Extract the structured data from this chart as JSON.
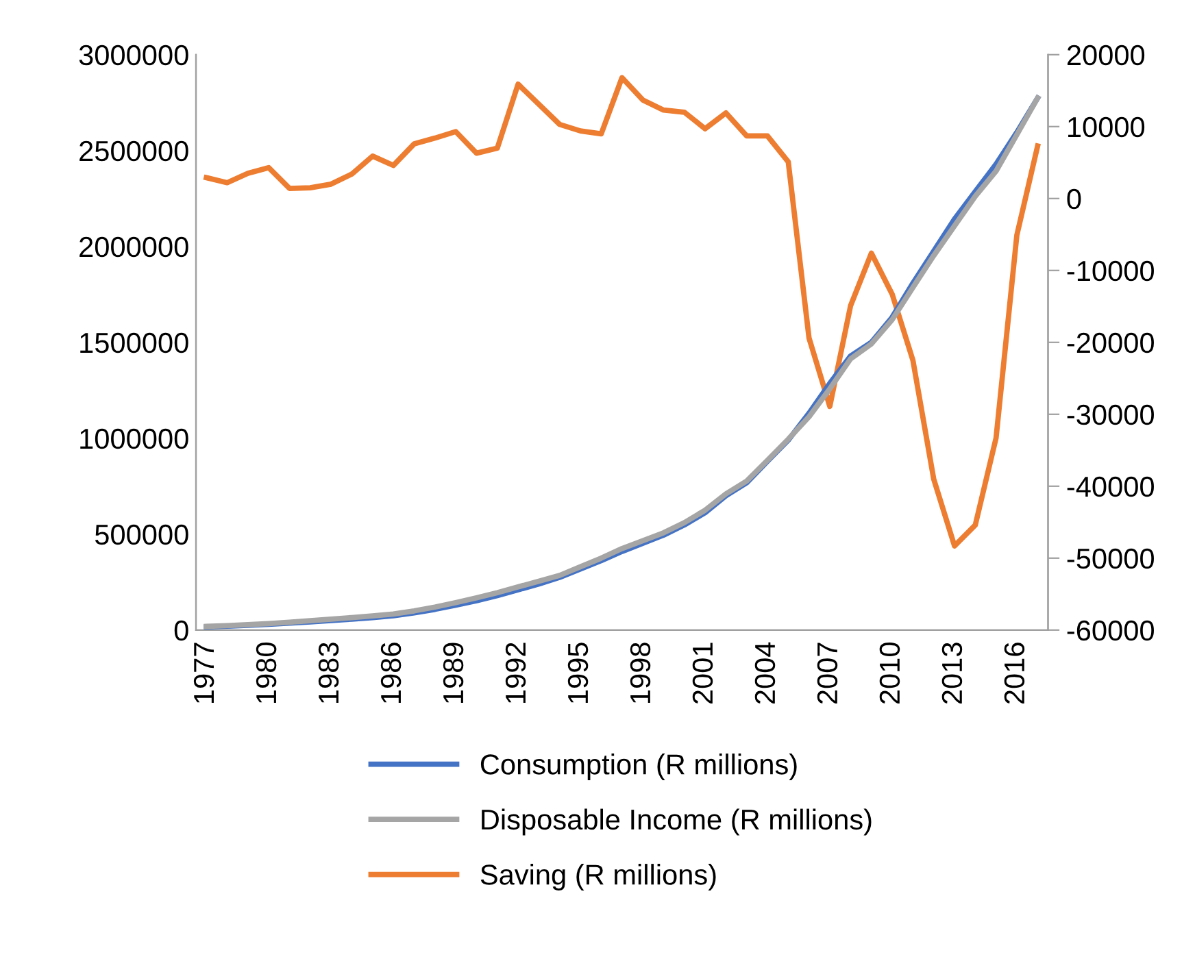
{
  "chart_data": {
    "type": "line",
    "categories": [
      "1977",
      null,
      null,
      "1980",
      null,
      null,
      "1983",
      null,
      null,
      "1986",
      null,
      null,
      "1989",
      null,
      null,
      "1992",
      null,
      null,
      "1995",
      null,
      null,
      "1998",
      null,
      null,
      "2001",
      null,
      null,
      "2004",
      null,
      null,
      "2007",
      null,
      null,
      "2010",
      null,
      null,
      "2013",
      null,
      null,
      "2016",
      null
    ],
    "series": [
      {
        "name": "Consumption (R millions)",
        "color": "#4472c4",
        "values": [
          16000,
          20000,
          25000,
          30000,
          36000,
          43000,
          50000,
          57000,
          65000,
          75000,
          90000,
          108000,
          130000,
          153000,
          180000,
          210000,
          240000,
          275000,
          318000,
          362000,
          410000,
          452000,
          495000,
          548000,
          612000,
          700000,
          768000,
          880000,
          990000,
          1131000,
          1286000,
          1429000,
          1500000,
          1631000,
          1809000,
          1976000,
          2143000,
          2286000,
          2429000,
          2595000,
          2774000
        ]
      },
      {
        "name": "Disposable Income (R millions)",
        "color": "#a5a5a5",
        "values": [
          19000,
          23000,
          28000,
          34000,
          41000,
          49000,
          57000,
          65000,
          74000,
          84000,
          100000,
          120000,
          143000,
          168000,
          195000,
          225000,
          255000,
          285000,
          330000,
          375000,
          425000,
          466000,
          507000,
          560000,
          625000,
          710000,
          777000,
          885000,
          995000,
          1112000,
          1258000,
          1414000,
          1492000,
          1618000,
          1786000,
          1952000,
          2107000,
          2262000,
          2393000,
          2583000,
          2774000
        ]
      },
      {
        "name": "Saving (R millions)",
        "color": "#ed7d31",
        "axis": "y2",
        "values": [
          2900,
          2200,
          3500,
          4300,
          1400,
          1500,
          2000,
          3400,
          5900,
          4600,
          7600,
          8400,
          9300,
          6300,
          7000,
          15900,
          13100,
          10300,
          9400,
          9000,
          16800,
          13700,
          12300,
          12000,
          9700,
          11900,
          8700,
          8700,
          5100,
          -19400,
          -28900,
          -14900,
          -7600,
          -13300,
          -22500,
          -39000,
          -48300,
          -45400,
          -33300,
          -5100,
          7300
        ]
      }
    ],
    "ylim": [
      0,
      3000000
    ],
    "yticks": [
      0,
      500000,
      1000000,
      1500000,
      2000000,
      2500000,
      3000000
    ],
    "y2lim": [
      -60000,
      20000
    ],
    "y2ticks": [
      -60000,
      -50000,
      -40000,
      -30000,
      -20000,
      -10000,
      0,
      10000,
      20000
    ],
    "legend": "bottom",
    "grid": false,
    "marker": "none",
    "line_style": "solid"
  }
}
